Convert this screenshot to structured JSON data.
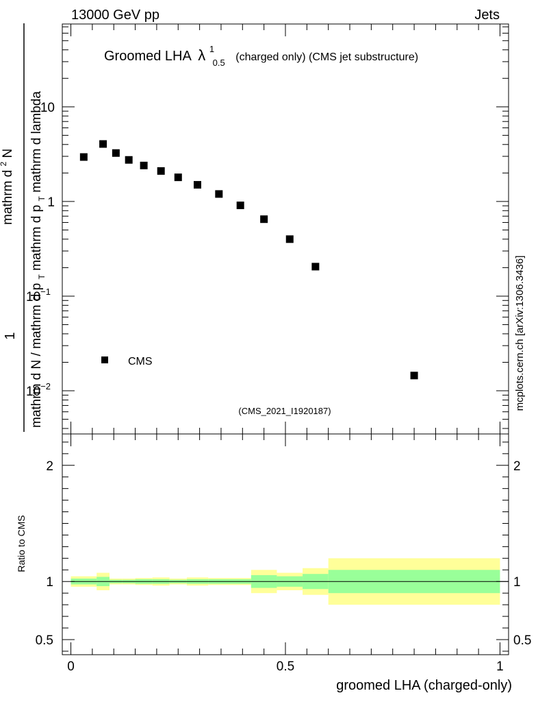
{
  "header": {
    "left": "13000 GeV pp",
    "right": "Jets"
  },
  "title": {
    "main": "Groomed LHA",
    "symbol": "λ",
    "superscript": "1",
    "subscript": "0.5",
    "suffix": "(charged only) (CMS jet substructure)"
  },
  "side_label": "mcplots.cern.ch [arXiv:1306.3436]",
  "analysis_tag": "(CMS_2021_I1920187)",
  "colors": {
    "inner_band": "#99ff99",
    "outer_band": "#ffff99",
    "marker": "#000000",
    "tag_text": "#999999",
    "side_text": "#666666"
  },
  "chart_data": [
    {
      "type": "scatter",
      "panel": "main",
      "ylabel": "1 / mathrm d N / mathrm d p_T mathrm d p_T mathrm d lambda / mathrm d^2 N",
      "ylabel_parts": {
        "numerator": "1",
        "denominator": "mathrm d N / mathrm d p",
        "denominator_tail": "mathrm d p",
        "denominator_end": "mathrm d lambda",
        "top_line": "mathrm d",
        "top_sup": "2",
        "top_end": "N",
        "sub_T": "T"
      },
      "yscale": "log",
      "ylim": [
        0.0035,
        75
      ],
      "xlim": [
        -0.02,
        1.02
      ],
      "y_ticks": [
        {
          "value": 10,
          "base": "10",
          "exp": ""
        },
        {
          "value": 1,
          "base": "1",
          "exp": ""
        },
        {
          "value": 0.1,
          "base": "10",
          "exp": "−1"
        },
        {
          "value": 0.01,
          "base": "10",
          "exp": "−2"
        }
      ],
      "legend": {
        "position": "bottom-left",
        "entries": [
          "CMS"
        ]
      },
      "series": [
        {
          "name": "CMS",
          "x": [
            0.03,
            0.075,
            0.105,
            0.135,
            0.17,
            0.21,
            0.25,
            0.295,
            0.345,
            0.395,
            0.45,
            0.51,
            0.57,
            0.8
          ],
          "y": [
            2.95,
            4.05,
            3.25,
            2.75,
            2.4,
            2.1,
            1.8,
            1.5,
            1.2,
            0.91,
            0.65,
            0.4,
            0.205,
            0.0145
          ]
        }
      ]
    },
    {
      "type": "area",
      "panel": "ratio",
      "ylabel": "Ratio to CMS",
      "xlabel": "groomed LHA (charged-only)",
      "ylim": [
        0.37,
        2.27
      ],
      "xlim": [
        -0.02,
        1.02
      ],
      "x_ticks": [
        "0",
        "0.5",
        "1"
      ],
      "y_ticks": [
        "0.5",
        "1",
        "2"
      ],
      "reference_line": 1,
      "bins": [
        {
          "lo": 0.0,
          "hi": 0.06,
          "inner": [
            0.975,
            1.025
          ],
          "outer": [
            0.955,
            1.045
          ]
        },
        {
          "lo": 0.06,
          "hi": 0.09,
          "inner": [
            0.96,
            1.04
          ],
          "outer": [
            0.925,
            1.075
          ]
        },
        {
          "lo": 0.09,
          "hi": 0.12,
          "inner": [
            0.985,
            1.015
          ],
          "outer": [
            0.975,
            1.025
          ]
        },
        {
          "lo": 0.12,
          "hi": 0.15,
          "inner": [
            0.985,
            1.015
          ],
          "outer": [
            0.975,
            1.025
          ]
        },
        {
          "lo": 0.15,
          "hi": 0.19,
          "inner": [
            0.98,
            1.02
          ],
          "outer": [
            0.97,
            1.03
          ]
        },
        {
          "lo": 0.19,
          "hi": 0.23,
          "inner": [
            0.98,
            1.02
          ],
          "outer": [
            0.965,
            1.035
          ]
        },
        {
          "lo": 0.23,
          "hi": 0.27,
          "inner": [
            0.985,
            1.015
          ],
          "outer": [
            0.975,
            1.025
          ]
        },
        {
          "lo": 0.27,
          "hi": 0.32,
          "inner": [
            0.98,
            1.02
          ],
          "outer": [
            0.965,
            1.035
          ]
        },
        {
          "lo": 0.32,
          "hi": 0.37,
          "inner": [
            0.98,
            1.02
          ],
          "outer": [
            0.97,
            1.03
          ]
        },
        {
          "lo": 0.37,
          "hi": 0.42,
          "inner": [
            0.98,
            1.02
          ],
          "outer": [
            0.97,
            1.03
          ]
        },
        {
          "lo": 0.42,
          "hi": 0.48,
          "inner": [
            0.945,
            1.055
          ],
          "outer": [
            0.9,
            1.1
          ]
        },
        {
          "lo": 0.48,
          "hi": 0.54,
          "inner": [
            0.955,
            1.045
          ],
          "outer": [
            0.925,
            1.075
          ]
        },
        {
          "lo": 0.54,
          "hi": 0.6,
          "inner": [
            0.935,
            1.065
          ],
          "outer": [
            0.885,
            1.115
          ]
        },
        {
          "lo": 0.6,
          "hi": 1.0,
          "inner": [
            0.9,
            1.1
          ],
          "outer": [
            0.8,
            1.2
          ]
        }
      ]
    }
  ]
}
